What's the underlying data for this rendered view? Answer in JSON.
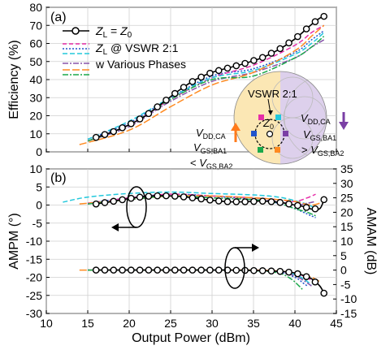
{
  "chart_data": [
    {
      "panel_label": "(a)",
      "type": "line",
      "ylabel": "Efficiency (%)",
      "xlim": [
        10,
        45
      ],
      "ylim": [
        0,
        80
      ],
      "x_ticks": [
        10,
        15,
        20,
        25,
        30,
        35,
        40,
        45
      ],
      "y_ticks": [
        0,
        10,
        20,
        30,
        40,
        50,
        60,
        70,
        80
      ],
      "legend": {
        "entries": [
          "Z_L = Z_0",
          "Z_L @ VSWR 2:1",
          "w Various Phases"
        ],
        "placement": "top-left"
      },
      "series": [
        {
          "name": "Z_L = Z_0",
          "color": "#000000",
          "style": "solid-circles",
          "x": [
            16,
            18,
            20,
            22,
            24,
            26,
            28,
            30,
            32,
            34,
            36,
            38,
            40,
            42,
            43,
            43.5
          ],
          "y": [
            8,
            11,
            15,
            20,
            27,
            34,
            40,
            44,
            46.5,
            49,
            52,
            56.5,
            62.5,
            70.5,
            74,
            75
          ]
        },
        {
          "color": "#2255cc",
          "style": "dotted",
          "x": [
            15,
            20,
            25,
            30,
            35,
            40,
            42,
            43.5
          ],
          "y": [
            7,
            16,
            30,
            42,
            46,
            55,
            62,
            67
          ]
        },
        {
          "color": "#e62ea8",
          "style": "dashed",
          "x": [
            15,
            20,
            25,
            30,
            35,
            40,
            42,
            43.5
          ],
          "y": [
            6,
            15,
            29,
            41,
            48,
            59,
            66,
            70
          ]
        },
        {
          "color": "#22c8dc",
          "style": "dashed",
          "x": [
            15,
            20,
            25,
            30,
            35,
            40,
            42,
            43.5
          ],
          "y": [
            7,
            17,
            30,
            41,
            45,
            54,
            60,
            66
          ]
        },
        {
          "color": "#8855aa",
          "style": "dash-dot",
          "x": [
            15,
            20,
            25,
            30,
            35,
            40,
            42,
            43.5
          ],
          "y": [
            6,
            14,
            28,
            39,
            44,
            52,
            58,
            62
          ]
        },
        {
          "color": "#ff8a20",
          "style": "long-dash",
          "x": [
            14,
            20,
            25,
            30,
            35,
            40,
            42,
            43.5
          ],
          "y": [
            4,
            12,
            25,
            37,
            44,
            56,
            64,
            70
          ]
        },
        {
          "color": "#1aa84a",
          "style": "dash-dot",
          "x": [
            15,
            20,
            25,
            30,
            35,
            40,
            42,
            43.5
          ],
          "y": [
            6,
            15,
            29,
            40,
            42,
            52,
            58,
            64
          ]
        }
      ],
      "inset": {
        "title": "VSWR 2:1",
        "center_label": "Z_0",
        "left_top": "V_DD,CA",
        "left_bottom_1": "V_GS,BA1",
        "left_bottom_2": "< V_GS,BA2",
        "right_top_1": "V_DD,CA",
        "right_top_2": "V_GS,BA1",
        "right_bottom": "> V_GS,BA2",
        "left_color": "#fbe7b4",
        "right_color": "#ddd0ec",
        "up_arrow_color": "#ff7a1a",
        "down_arrow_color": "#7a3fa5"
      }
    },
    {
      "panel_label": "(b)",
      "type": "line",
      "xlabel": "Output Power (dBm)",
      "ylabel": "AMPM (°)",
      "ylabel_right": "AMAM (dB)",
      "xlim": [
        10,
        45
      ],
      "ylim": [
        -30,
        10
      ],
      "ylim_right": [
        -15,
        35
      ],
      "x_ticks": [
        10,
        15,
        20,
        25,
        30,
        35,
        40,
        45
      ],
      "y_ticks": [
        -30,
        -25,
        -20,
        -15,
        -10,
        -5,
        0,
        5,
        10
      ],
      "y_ticks_right": [
        -15,
        -10,
        -5,
        0,
        5,
        10,
        15,
        20,
        25,
        30,
        35
      ],
      "series": [
        {
          "name": "AMPM Z_L = Z_0",
          "axis": "left",
          "color": "#000000",
          "style": "solid-circles",
          "x": [
            16,
            18,
            20,
            22,
            24,
            26,
            28,
            30,
            32,
            34,
            36,
            38,
            40,
            41,
            42,
            43,
            43.5
          ],
          "y": [
            0.3,
            1,
            1.8,
            2.4,
            2.6,
            2.4,
            1.9,
            1.3,
            0.9,
            0.9,
            1.1,
            0.8,
            0,
            -0.4,
            -1.1,
            -1,
            1.5
          ]
        },
        {
          "name": "AMAM Z_L = Z_0",
          "axis": "right",
          "color": "#000000",
          "style": "solid-circles",
          "x": [
            16,
            18,
            20,
            22,
            24,
            26,
            28,
            30,
            32,
            34,
            36,
            38,
            39,
            40,
            41,
            42,
            43,
            43.5
          ],
          "y": [
            0,
            0,
            0,
            0,
            0,
            0,
            0,
            0,
            0,
            -0.1,
            -0.2,
            -0.4,
            -0.6,
            -1,
            -1.8,
            -3,
            -5.5,
            -8
          ]
        },
        {
          "axis": "left",
          "color": "#2255cc",
          "style": "dotted",
          "x": [
            15,
            20,
            25,
            30,
            35,
            38,
            40,
            41.5,
            42.5
          ],
          "y": [
            0.5,
            2,
            3,
            2.5,
            1.5,
            0.5,
            -1,
            -2.5,
            -3.5
          ]
        },
        {
          "axis": "left",
          "color": "#e62ea8",
          "style": "dashed",
          "x": [
            15,
            20,
            25,
            30,
            35,
            38,
            40,
            41.5,
            42.5
          ],
          "y": [
            0.5,
            2,
            3,
            2.5,
            2,
            1.5,
            1,
            2,
            3
          ]
        },
        {
          "axis": "left",
          "color": "#22c8dc",
          "style": "dashed",
          "x": [
            12,
            15,
            20,
            25,
            30,
            35,
            38,
            40,
            41.5,
            42.5
          ],
          "y": [
            0.8,
            2.2,
            3.2,
            3.6,
            3.2,
            2.8,
            2.2,
            1.2,
            0.2,
            -1
          ]
        },
        {
          "axis": "left",
          "color": "#8855aa",
          "style": "dash-dot",
          "x": [
            15,
            20,
            25,
            30,
            35,
            38,
            40,
            41.5,
            42.5
          ],
          "y": [
            0.3,
            1.5,
            2.5,
            2,
            1.5,
            1,
            0,
            0.5,
            1
          ]
        },
        {
          "axis": "left",
          "color": "#ff8a20",
          "style": "long-dash",
          "x": [
            14,
            20,
            25,
            30,
            35,
            38,
            40,
            42,
            43.5
          ],
          "y": [
            0.3,
            1.5,
            2.5,
            2.5,
            2,
            1.5,
            1,
            0,
            1
          ]
        },
        {
          "axis": "left",
          "color": "#1aa84a",
          "style": "dash-dot",
          "x": [
            15,
            20,
            25,
            30,
            35,
            38,
            40,
            41.5,
            42.5
          ],
          "y": [
            0.3,
            1.5,
            2.5,
            2,
            1.5,
            0.5,
            -1,
            -2,
            -3
          ]
        },
        {
          "axis": "right",
          "color": "#2255cc",
          "style": "dotted",
          "x": [
            15,
            20,
            25,
            30,
            35,
            38,
            40,
            41,
            41.5
          ],
          "y": [
            0,
            0,
            0,
            0,
            -0.1,
            -0.6,
            -2.5,
            -4.5,
            -5.5
          ]
        },
        {
          "axis": "right",
          "color": "#e62ea8",
          "style": "dashed",
          "x": [
            15,
            20,
            25,
            30,
            35,
            38,
            40,
            41,
            42
          ],
          "y": [
            0,
            0,
            0,
            0,
            0,
            -0.3,
            -1,
            -2,
            -3.5
          ]
        },
        {
          "axis": "right",
          "color": "#22c8dc",
          "style": "dashed",
          "x": [
            15,
            20,
            25,
            30,
            35,
            38,
            40,
            41,
            42
          ],
          "y": [
            0,
            0,
            0,
            0,
            0,
            -0.4,
            -1.5,
            -3,
            -5
          ]
        },
        {
          "axis": "right",
          "color": "#8855aa",
          "style": "dash-dot",
          "x": [
            15,
            20,
            25,
            30,
            35,
            38,
            40,
            41,
            42
          ],
          "y": [
            0,
            0,
            0,
            0,
            -0.1,
            -0.6,
            -2,
            -3.5,
            -5.5
          ]
        },
        {
          "axis": "right",
          "color": "#ff8a20",
          "style": "long-dash",
          "x": [
            14,
            20,
            25,
            30,
            35,
            38,
            40,
            42,
            43
          ],
          "y": [
            0,
            0,
            0,
            0,
            0,
            -0.3,
            -1,
            -2.5,
            -4
          ]
        },
        {
          "axis": "right",
          "color": "#1aa84a",
          "style": "dash-dot",
          "x": [
            15,
            20,
            25,
            30,
            35,
            38,
            39.5,
            40.5,
            41
          ],
          "y": [
            0,
            0,
            0,
            0,
            -0.2,
            -1,
            -3,
            -5.5,
            -7
          ]
        }
      ]
    }
  ]
}
